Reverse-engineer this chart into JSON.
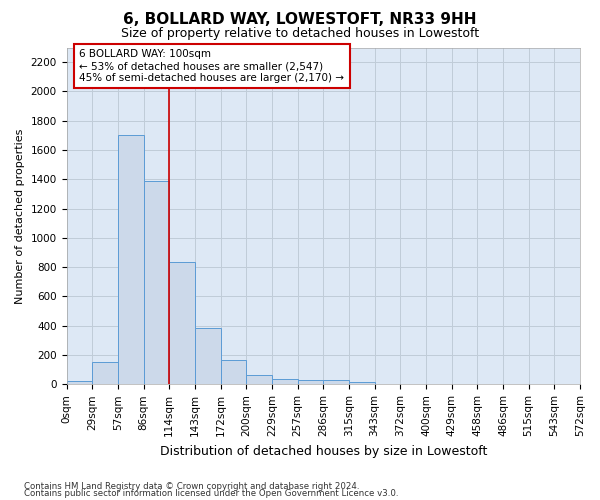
{
  "title": "6, BOLLARD WAY, LOWESTOFT, NR33 9HH",
  "subtitle": "Size of property relative to detached houses in Lowestoft",
  "xlabel": "Distribution of detached houses by size in Lowestoft",
  "ylabel": "Number of detached properties",
  "bar_values": [
    20,
    155,
    1700,
    1390,
    835,
    385,
    163,
    65,
    38,
    28,
    28,
    18,
    0,
    0,
    0,
    0,
    0,
    0,
    0,
    0
  ],
  "bin_edges": [
    0,
    29,
    57,
    86,
    114,
    143,
    172,
    200,
    229,
    257,
    286,
    315,
    343,
    372,
    400,
    429,
    458,
    486,
    515,
    543,
    572
  ],
  "bin_labels": [
    "0sqm",
    "29sqm",
    "57sqm",
    "86sqm",
    "114sqm",
    "143sqm",
    "172sqm",
    "200sqm",
    "229sqm",
    "257sqm",
    "286sqm",
    "315sqm",
    "343sqm",
    "372sqm",
    "400sqm",
    "429sqm",
    "458sqm",
    "486sqm",
    "515sqm",
    "543sqm",
    "572sqm"
  ],
  "bar_color": "#ccd9ea",
  "bar_edge_color": "#5b9bd5",
  "bar_linewidth": 0.7,
  "vline_x": 3,
  "vline_color": "#cc0000",
  "vline_linewidth": 1.2,
  "annotation_text": "6 BOLLARD WAY: 100sqm\n← 53% of detached houses are smaller (2,547)\n45% of semi-detached houses are larger (2,170) →",
  "annotation_box_color": "#ffffff",
  "annotation_box_edge": "#cc0000",
  "annotation_fontsize": 7.5,
  "ylim": [
    0,
    2300
  ],
  "yticks": [
    0,
    200,
    400,
    600,
    800,
    1000,
    1200,
    1400,
    1600,
    1800,
    2000,
    2200
  ],
  "grid_color": "#c0ccd8",
  "bg_color": "#dde8f5",
  "footer_line1": "Contains HM Land Registry data © Crown copyright and database right 2024.",
  "footer_line2": "Contains public sector information licensed under the Open Government Licence v3.0.",
  "title_fontsize": 11,
  "subtitle_fontsize": 9,
  "ylabel_fontsize": 8,
  "xlabel_fontsize": 9,
  "tick_fontsize": 7.5
}
